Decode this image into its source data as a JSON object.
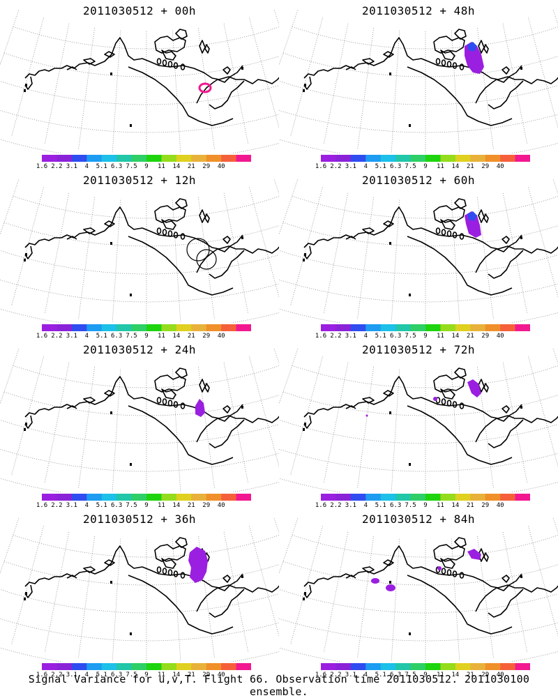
{
  "panels": [
    {
      "title": "2011030512 + 00h",
      "overlay": "ring"
    },
    {
      "title": "2011030512 + 48h",
      "overlay": "blob48"
    },
    {
      "title": "2011030512 + 12h",
      "overlay": "outline"
    },
    {
      "title": "2011030512 + 60h",
      "overlay": "blob60"
    },
    {
      "title": "2011030512 + 24h",
      "overlay": "blob24"
    },
    {
      "title": "2011030512 + 72h",
      "overlay": "blob72"
    },
    {
      "title": "2011030512 + 36h",
      "overlay": "blob36"
    },
    {
      "title": "2011030512 + 84h",
      "overlay": "blob84"
    }
  ],
  "colorbar": {
    "colors": [
      "#9b1fe0",
      "#8a23d8",
      "#2f4cf0",
      "#1d9cf2",
      "#1cc0e8",
      "#22c6a8",
      "#2ecf66",
      "#1ed40e",
      "#94dc1c",
      "#e0d020",
      "#e8b23a",
      "#f0902a",
      "#f5603a",
      "#f21890"
    ],
    "labels": [
      "1.6",
      "2.2",
      "3.1",
      "4",
      "5.1",
      "6.3",
      "7.5",
      "9",
      "11",
      "14",
      "21",
      "29",
      "40"
    ]
  },
  "caption": "Signal Variance for u,v,T. Flight 66. Observation time 2011030512. 2011030100 ensemble."
}
